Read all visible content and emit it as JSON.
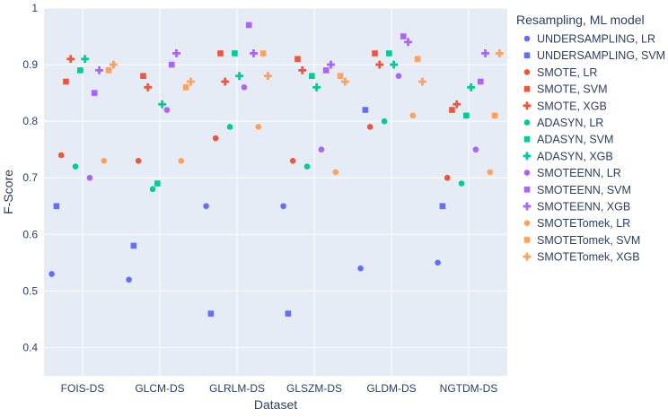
{
  "chart_data": {
    "type": "scatter",
    "xlabel": "Dataset",
    "ylabel": "F-Score",
    "ylim": [
      0.35,
      1.0
    ],
    "yticks": [
      "0.4",
      "0.5",
      "0.6",
      "0.7",
      "0.8",
      "0.9",
      "1"
    ],
    "grid": true,
    "legend_title": "Resampling, ML model",
    "legend_placement": "right",
    "categories": [
      "FOIS-DS",
      "GLCM-DS",
      "GLRLM-DS",
      "GLSZM-DS",
      "GLDM-DS",
      "NGTDM-DS"
    ],
    "series": [
      {
        "name": "UNDERSAMPLING, LR",
        "symbol": "circle",
        "color": "#636efa",
        "values": [
          0.53,
          0.52,
          0.65,
          0.65,
          0.54,
          0.55
        ]
      },
      {
        "name": "UNDERSAMPLING, SVM",
        "symbol": "square",
        "color": "#636efa",
        "values": [
          0.65,
          0.58,
          0.46,
          0.46,
          0.82,
          0.65
        ]
      },
      {
        "name": "SMOTE, LR",
        "symbol": "circle",
        "color": "#ef553b",
        "values": [
          0.74,
          0.73,
          0.77,
          0.73,
          0.79,
          0.7
        ]
      },
      {
        "name": "SMOTE, SVM",
        "symbol": "square",
        "color": "#ef553b",
        "values": [
          0.87,
          0.88,
          0.92,
          0.91,
          0.92,
          0.82
        ]
      },
      {
        "name": "SMOTE, XGB",
        "symbol": "cross",
        "color": "#ef553b",
        "values": [
          0.91,
          0.86,
          0.87,
          0.89,
          0.9,
          0.83
        ]
      },
      {
        "name": "ADASYN, LR",
        "symbol": "circle",
        "color": "#00cc96",
        "values": [
          0.72,
          0.68,
          0.79,
          0.72,
          0.8,
          0.69
        ]
      },
      {
        "name": "ADASYN, SVM",
        "symbol": "square",
        "color": "#00cc96",
        "values": [
          0.89,
          0.69,
          0.92,
          0.88,
          0.92,
          0.81
        ]
      },
      {
        "name": "ADASYN, XGB",
        "symbol": "cross",
        "color": "#00cc96",
        "values": [
          0.91,
          0.83,
          0.88,
          0.86,
          0.9,
          0.86
        ]
      },
      {
        "name": "SMOTEENN, LR",
        "symbol": "circle",
        "color": "#ab63fa",
        "values": [
          0.7,
          0.82,
          0.86,
          0.75,
          0.88,
          0.75
        ]
      },
      {
        "name": "SMOTEENN, SVM",
        "symbol": "square",
        "color": "#ab63fa",
        "values": [
          0.85,
          0.9,
          0.97,
          0.89,
          0.95,
          0.87
        ]
      },
      {
        "name": "SMOTEENN, XGB",
        "symbol": "cross",
        "color": "#ab63fa",
        "values": [
          0.89,
          0.92,
          0.92,
          0.9,
          0.94,
          0.92
        ]
      },
      {
        "name": "SMOTETomek, LR",
        "symbol": "circle",
        "color": "#ffa15a",
        "values": [
          0.73,
          0.73,
          0.79,
          0.71,
          0.81,
          0.71
        ]
      },
      {
        "name": "SMOTETomek, SVM",
        "symbol": "square",
        "color": "#ffa15a",
        "values": [
          0.89,
          0.86,
          0.92,
          0.88,
          0.91,
          0.81
        ]
      },
      {
        "name": "SMOTETomek, XGB",
        "symbol": "cross",
        "color": "#ffa15a",
        "values": [
          0.9,
          0.87,
          0.88,
          0.87,
          0.87,
          0.92
        ]
      }
    ]
  }
}
